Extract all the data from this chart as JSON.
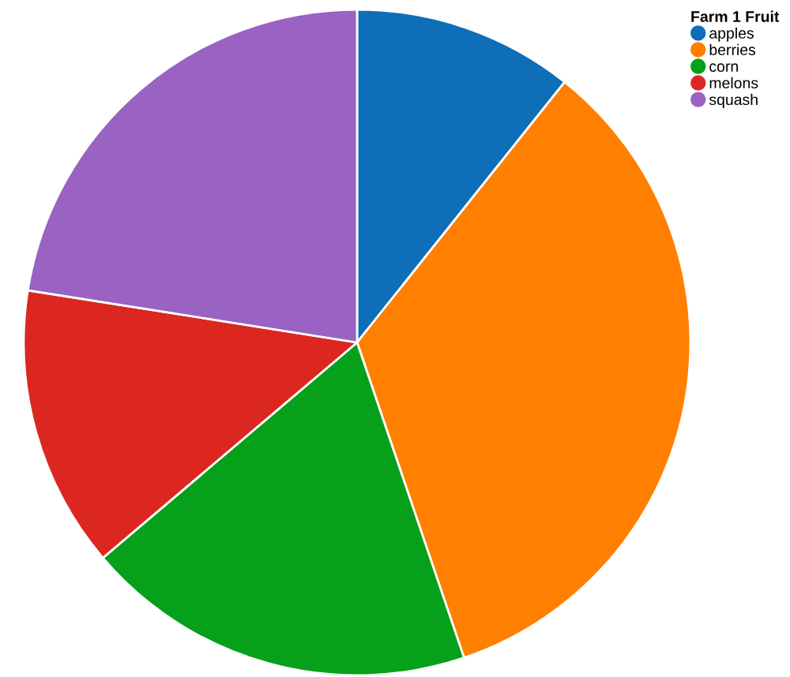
{
  "chart_data": {
    "type": "pie",
    "legend_title": "Farm 1 Fruit",
    "legend": "top right",
    "categories": [
      "apples",
      "berries",
      "corn",
      "melons",
      "squash"
    ],
    "values": [
      10.7,
      34.1,
      19.0,
      13.7,
      22.5
    ],
    "colors": [
      "#0e6eb8",
      "#ff7f00",
      "#06a01a",
      "#dc2721",
      "#9a62c3"
    ]
  }
}
